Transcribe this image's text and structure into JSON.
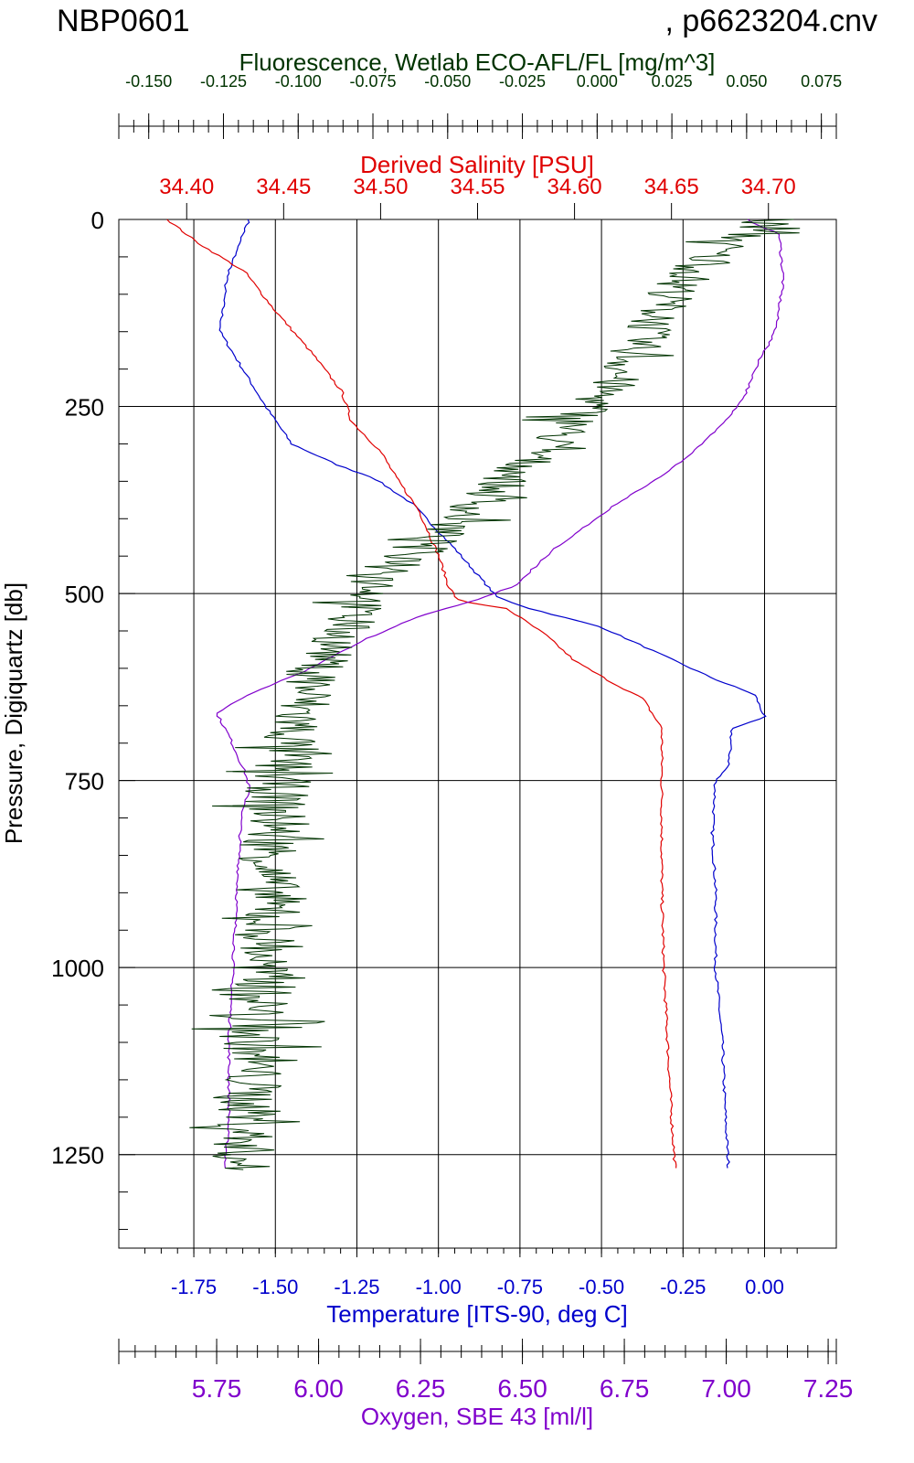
{
  "header": {
    "cruise": "NBP0601",
    "file": ", p6623204.cnv"
  },
  "chart_data": {
    "type": "line",
    "grid": true,
    "y_axis": {
      "label": "Pressure, Digiquartz [db]",
      "range": [
        0,
        1375
      ],
      "inverted": true,
      "ticks": [
        0,
        250,
        500,
        750,
        1000,
        1250
      ],
      "tick_labels": [
        "0",
        "250",
        "500",
        "750",
        "1000",
        "1250"
      ],
      "color": "#000000"
    },
    "x_axes": {
      "fluorescence": {
        "label": "Fluorescence, Wetlab ECO-AFL/FL [mg/m^3]",
        "range": [
          -0.16,
          0.08
        ],
        "ticks": [
          -0.15,
          -0.125,
          -0.1,
          -0.075,
          -0.05,
          -0.025,
          0.0,
          0.025,
          0.05,
          0.075
        ],
        "tick_labels": [
          "-0.150",
          "-0.125",
          "-0.100",
          "-0.075",
          "-0.050",
          "-0.025",
          "0.000",
          "0.025",
          "0.050",
          "0.075"
        ],
        "color": "#003300"
      },
      "salinity": {
        "label": "Derived Salinity [PSU]",
        "range": [
          34.365,
          34.735
        ],
        "ticks": [
          34.4,
          34.45,
          34.5,
          34.55,
          34.6,
          34.65,
          34.7
        ],
        "tick_labels": [
          "34.40",
          "34.45",
          "34.50",
          "34.55",
          "34.60",
          "34.65",
          "34.70"
        ],
        "color": "#e00000"
      },
      "temperature": {
        "label": "Temperature [ITS-90, deg C]",
        "range": [
          -1.98,
          0.22
        ],
        "ticks": [
          -1.75,
          -1.5,
          -1.25,
          -1.0,
          -0.75,
          -0.5,
          -0.25,
          0.0
        ],
        "tick_labels": [
          "-1.75",
          "-1.50",
          "-1.25",
          "-1.00",
          "-0.75",
          "-0.50",
          "-0.25",
          "0.00"
        ],
        "color": "#0000cc"
      },
      "oxygen": {
        "label": "Oxygen, SBE 43 [ml/l]",
        "range": [
          5.51,
          7.27
        ],
        "ticks": [
          5.75,
          6.0,
          6.25,
          6.5,
          6.75,
          7.0,
          7.25
        ],
        "tick_labels": [
          "5.75",
          "6.00",
          "6.25",
          "6.50",
          "6.75",
          "7.00",
          "7.25"
        ],
        "color": "#8000cc"
      }
    },
    "series": [
      {
        "axis": "temperature",
        "color": "#0000cc",
        "points": [
          [
            -1.58,
            0
          ],
          [
            -1.61,
            30
          ],
          [
            -1.65,
            80
          ],
          [
            -1.67,
            150
          ],
          [
            -1.6,
            200
          ],
          [
            -1.53,
            250
          ],
          [
            -1.45,
            300
          ],
          [
            -1.3,
            330
          ],
          [
            -1.2,
            345
          ],
          [
            -1.08,
            380
          ],
          [
            -0.95,
            440
          ],
          [
            -0.87,
            480
          ],
          [
            -0.82,
            505
          ],
          [
            -0.72,
            520
          ],
          [
            -0.5,
            545
          ],
          [
            -0.35,
            575
          ],
          [
            -0.15,
            615
          ],
          [
            -0.03,
            635
          ],
          [
            0.0,
            665
          ],
          [
            -0.1,
            680
          ],
          [
            -0.11,
            730
          ],
          [
            -0.15,
            750
          ],
          [
            -0.16,
            820
          ],
          [
            -0.15,
            900
          ],
          [
            -0.15,
            1000
          ],
          [
            -0.13,
            1100
          ],
          [
            -0.12,
            1200
          ],
          [
            -0.11,
            1270
          ]
        ]
      },
      {
        "axis": "salinity",
        "color": "#e00000",
        "points": [
          [
            34.39,
            0
          ],
          [
            34.405,
            30
          ],
          [
            34.43,
            70
          ],
          [
            34.445,
            120
          ],
          [
            34.465,
            180
          ],
          [
            34.48,
            230
          ],
          [
            34.485,
            270
          ],
          [
            34.5,
            310
          ],
          [
            34.508,
            345
          ],
          [
            34.52,
            390
          ],
          [
            34.53,
            450
          ],
          [
            34.535,
            490
          ],
          [
            34.54,
            510
          ],
          [
            34.565,
            520
          ],
          [
            34.585,
            555
          ],
          [
            34.6,
            590
          ],
          [
            34.62,
            620
          ],
          [
            34.635,
            640
          ],
          [
            34.645,
            680
          ],
          [
            34.645,
            720
          ],
          [
            34.645,
            760
          ],
          [
            34.645,
            900
          ],
          [
            34.646,
            1000
          ],
          [
            34.648,
            1100
          ],
          [
            34.65,
            1200
          ],
          [
            34.652,
            1270
          ]
        ]
      },
      {
        "axis": "oxygen",
        "color": "#8000cc",
        "points": [
          [
            7.05,
            0
          ],
          [
            7.13,
            20
          ],
          [
            7.14,
            80
          ],
          [
            7.12,
            150
          ],
          [
            7.08,
            190
          ],
          [
            7.05,
            230
          ],
          [
            7.0,
            270
          ],
          [
            6.92,
            310
          ],
          [
            6.85,
            340
          ],
          [
            6.73,
            380
          ],
          [
            6.58,
            440
          ],
          [
            6.48,
            490
          ],
          [
            6.38,
            510
          ],
          [
            6.25,
            530
          ],
          [
            6.12,
            560
          ],
          [
            5.98,
            600
          ],
          [
            5.83,
            635
          ],
          [
            5.75,
            660
          ],
          [
            5.78,
            690
          ],
          [
            5.82,
            740
          ],
          [
            5.83,
            760
          ],
          [
            5.81,
            800
          ],
          [
            5.8,
            900
          ],
          [
            5.79,
            1000
          ],
          [
            5.78,
            1100
          ],
          [
            5.78,
            1200
          ],
          [
            5.77,
            1270
          ]
        ]
      },
      {
        "axis": "fluorescence",
        "color": "#003300",
        "noisy": true,
        "points": [
          [
            0.06,
            0
          ],
          [
            0.04,
            40
          ],
          [
            0.025,
            100
          ],
          [
            0.015,
            160
          ],
          [
            0.005,
            220
          ],
          [
            -0.01,
            280
          ],
          [
            -0.025,
            330
          ],
          [
            -0.04,
            380
          ],
          [
            -0.055,
            430
          ],
          [
            -0.07,
            480
          ],
          [
            -0.08,
            520
          ],
          [
            -0.09,
            580
          ],
          [
            -0.098,
            640
          ],
          [
            -0.103,
            700
          ],
          [
            -0.107,
            760
          ],
          [
            -0.108,
            820
          ],
          [
            -0.11,
            880
          ],
          [
            -0.11,
            940
          ],
          [
            -0.112,
            1000
          ],
          [
            -0.113,
            1060
          ],
          [
            -0.115,
            1120
          ],
          [
            -0.116,
            1180
          ],
          [
            -0.118,
            1240
          ],
          [
            -0.12,
            1270
          ]
        ]
      }
    ]
  }
}
